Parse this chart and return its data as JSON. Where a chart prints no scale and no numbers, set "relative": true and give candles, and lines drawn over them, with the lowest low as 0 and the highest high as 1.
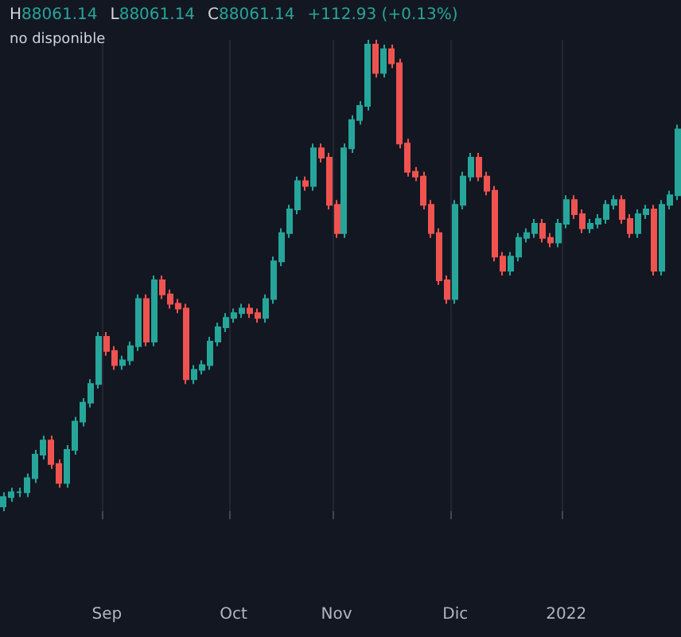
{
  "chart_data": {
    "type": "candlestick",
    "relative": true,
    "grid": "x",
    "annotations": [
      "H88061.14",
      "L88061.14",
      "C88061.14",
      "+112.93 (+0.13%)",
      "no disponible"
    ],
    "categories": [
      null,
      null,
      null,
      null,
      null,
      null,
      null,
      null,
      null,
      null,
      null,
      null,
      null,
      "Sep",
      null,
      null,
      null,
      null,
      null,
      null,
      null,
      null,
      null,
      null,
      null,
      null,
      null,
      null,
      null,
      "Oct",
      null,
      null,
      null,
      null,
      null,
      null,
      null,
      null,
      null,
      null,
      null,
      null,
      "Nov",
      null,
      null,
      null,
      null,
      null,
      null,
      null,
      null,
      null,
      null,
      null,
      null,
      null,
      null,
      "Dic",
      null,
      null,
      null,
      null,
      null,
      null,
      null,
      null,
      null,
      null,
      null,
      null,
      null,
      "2022",
      null,
      null,
      null,
      null,
      null,
      null,
      null,
      null,
      null,
      null,
      null,
      null,
      null,
      null
    ],
    "ohlc": [
      [
        0.01,
        0.04,
        0,
        0.03
      ],
      [
        0.03,
        0.05,
        0.02,
        0.04
      ],
      [
        0.04,
        0.05,
        0.03,
        0.04
      ],
      [
        0.04,
        0.08,
        0.03,
        0.07
      ],
      [
        0.07,
        0.13,
        0.06,
        0.12
      ],
      [
        0.12,
        0.16,
        0.11,
        0.15
      ],
      [
        0.15,
        0.16,
        0.09,
        0.1
      ],
      [
        0.1,
        0.11,
        0.05,
        0.06
      ],
      [
        0.06,
        0.14,
        0.05,
        0.13
      ],
      [
        0.13,
        0.2,
        0.12,
        0.19
      ],
      [
        0.19,
        0.24,
        0.18,
        0.23
      ],
      [
        0.23,
        0.28,
        0.22,
        0.27
      ],
      [
        0.27,
        0.38,
        0.26,
        0.37
      ],
      [
        0.37,
        0.38,
        0.33,
        0.34
      ],
      [
        0.34,
        0.35,
        0.3,
        0.31
      ],
      [
        0.31,
        0.33,
        0.3,
        0.32
      ],
      [
        0.32,
        0.36,
        0.31,
        0.35
      ],
      [
        0.35,
        0.46,
        0.34,
        0.45
      ],
      [
        0.45,
        0.46,
        0.35,
        0.36
      ],
      [
        0.36,
        0.5,
        0.35,
        0.49
      ],
      [
        0.49,
        0.5,
        0.45,
        0.46
      ],
      [
        0.46,
        0.47,
        0.43,
        0.44
      ],
      [
        0.44,
        0.45,
        0.42,
        0.43
      ],
      [
        0.43,
        0.44,
        0.27,
        0.28
      ],
      [
        0.28,
        0.31,
        0.27,
        0.3
      ],
      [
        0.3,
        0.32,
        0.29,
        0.31
      ],
      [
        0.31,
        0.37,
        0.3,
        0.36
      ],
      [
        0.36,
        0.4,
        0.35,
        0.39
      ],
      [
        0.39,
        0.42,
        0.38,
        0.41
      ],
      [
        0.41,
        0.43,
        0.4,
        0.42
      ],
      [
        0.42,
        0.44,
        0.41,
        0.43
      ],
      [
        0.43,
        0.44,
        0.41,
        0.42
      ],
      [
        0.42,
        0.43,
        0.4,
        0.41
      ],
      [
        0.41,
        0.46,
        0.4,
        0.45
      ],
      [
        0.45,
        0.54,
        0.44,
        0.53
      ],
      [
        0.53,
        0.6,
        0.52,
        0.59
      ],
      [
        0.59,
        0.65,
        0.58,
        0.64
      ],
      [
        0.64,
        0.71,
        0.63,
        0.7
      ],
      [
        0.7,
        0.71,
        0.68,
        0.69
      ],
      [
        0.69,
        0.78,
        0.68,
        0.77
      ],
      [
        0.77,
        0.78,
        0.74,
        0.75
      ],
      [
        0.75,
        0.76,
        0.64,
        0.65
      ],
      [
        0.65,
        0.66,
        0.58,
        0.59
      ],
      [
        0.59,
        0.78,
        0.58,
        0.77
      ],
      [
        0.77,
        0.84,
        0.76,
        0.83
      ],
      [
        0.83,
        0.87,
        0.82,
        0.86
      ],
      [
        0.86,
        1,
        0.85,
        0.99
      ],
      [
        0.99,
        1,
        0.92,
        0.93
      ],
      [
        0.93,
        0.99,
        0.92,
        0.98
      ],
      [
        0.98,
        0.99,
        0.94,
        0.95
      ],
      [
        0.95,
        0.96,
        0.77,
        0.78
      ],
      [
        0.78,
        0.79,
        0.71,
        0.72
      ],
      [
        0.72,
        0.73,
        0.7,
        0.71
      ],
      [
        0.71,
        0.72,
        0.64,
        0.65
      ],
      [
        0.65,
        0.66,
        0.58,
        0.59
      ],
      [
        0.59,
        0.6,
        0.48,
        0.49
      ],
      [
        0.49,
        0.5,
        0.44,
        0.45
      ],
      [
        0.45,
        0.66,
        0.44,
        0.65
      ],
      [
        0.65,
        0.72,
        0.64,
        0.71
      ],
      [
        0.71,
        0.76,
        0.7,
        0.75
      ],
      [
        0.75,
        0.76,
        0.7,
        0.71
      ],
      [
        0.71,
        0.72,
        0.67,
        0.68
      ],
      [
        0.68,
        0.69,
        0.53,
        0.54
      ],
      [
        0.54,
        0.55,
        0.5,
        0.51
      ],
      [
        0.51,
        0.55,
        0.5,
        0.54
      ],
      [
        0.54,
        0.59,
        0.53,
        0.58
      ],
      [
        0.58,
        0.6,
        0.57,
        0.59
      ],
      [
        0.59,
        0.62,
        0.58,
        0.61
      ],
      [
        0.61,
        0.62,
        0.57,
        0.58
      ],
      [
        0.58,
        0.59,
        0.56,
        0.57
      ],
      [
        0.57,
        0.62,
        0.56,
        0.61
      ],
      [
        0.61,
        0.67,
        0.6,
        0.66
      ],
      [
        0.66,
        0.67,
        0.62,
        0.63
      ],
      [
        0.63,
        0.64,
        0.59,
        0.6
      ],
      [
        0.6,
        0.62,
        0.59,
        0.61
      ],
      [
        0.61,
        0.63,
        0.6,
        0.62
      ],
      [
        0.62,
        0.66,
        0.61,
        0.65
      ],
      [
        0.65,
        0.67,
        0.64,
        0.66
      ],
      [
        0.66,
        0.67,
        0.61,
        0.62
      ],
      [
        0.62,
        0.63,
        0.58,
        0.59
      ],
      [
        0.59,
        0.64,
        0.58,
        0.63
      ],
      [
        0.63,
        0.65,
        0.62,
        0.64
      ],
      [
        0.64,
        0.65,
        0.5,
        0.51
      ],
      [
        0.51,
        0.66,
        0.5,
        0.65
      ],
      [
        0.65,
        0.68,
        0.64,
        0.67
      ],
      [
        0.67,
        0.82,
        0.66,
        0.81
      ]
    ]
  }
}
